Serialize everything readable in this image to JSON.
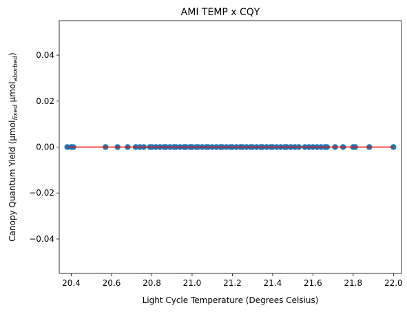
{
  "chart_data": {
    "type": "scatter",
    "title": "AMI TEMP x CQY",
    "xlabel": "Light Cycle Temperature (Degrees Celsius)",
    "ylabel": {
      "prefix": "Canopy Quantum Yield (μmol",
      "sub1": "fixed",
      "middle": " μmol",
      "sub2": "aborbed",
      "suffix": ")"
    },
    "xlim": [
      20.34,
      22.04
    ],
    "ylim": [
      -0.055,
      0.055
    ],
    "xticks": [
      20.4,
      20.6,
      20.8,
      21.0,
      21.2,
      21.4,
      21.6,
      21.8,
      22.0
    ],
    "xtick_labels": [
      "20.4",
      "20.6",
      "20.8",
      "21.0",
      "21.2",
      "21.4",
      "21.6",
      "21.8",
      "22.0"
    ],
    "yticks": [
      -0.04,
      -0.02,
      0.0,
      0.02,
      0.04
    ],
    "ytick_labels": [
      "−0.04",
      "−0.02",
      "0.00",
      "0.02",
      "0.04"
    ],
    "grid": false,
    "marker_color": "#1f77b4",
    "fit_line_color": "#ff0000",
    "fit_line": {
      "x": [
        20.38,
        22.0
      ],
      "y": [
        0.0,
        0.0
      ]
    },
    "x": [
      20.38,
      20.4,
      20.41,
      20.57,
      20.63,
      20.68,
      20.72,
      20.74,
      20.76,
      20.79,
      20.8,
      20.82,
      20.84,
      20.86,
      20.87,
      20.89,
      20.91,
      20.92,
      20.94,
      20.96,
      20.97,
      20.99,
      21.0,
      21.02,
      21.03,
      21.05,
      21.07,
      21.08,
      21.1,
      21.12,
      21.14,
      21.15,
      21.17,
      21.19,
      21.2,
      21.22,
      21.24,
      21.25,
      21.27,
      21.29,
      21.3,
      21.32,
      21.34,
      21.35,
      21.37,
      21.39,
      21.4,
      21.42,
      21.44,
      21.46,
      21.47,
      21.49,
      21.51,
      21.53,
      21.56,
      21.58,
      21.6,
      21.62,
      21.64,
      21.66,
      21.67,
      21.71,
      21.75,
      21.8,
      21.81,
      21.88,
      22.0
    ],
    "y": [
      0,
      0,
      0,
      0,
      0,
      0,
      0,
      0,
      0,
      0,
      0,
      0,
      0,
      0,
      0,
      0,
      0,
      0,
      0,
      0,
      0,
      0,
      0,
      0,
      0,
      0,
      0,
      0,
      0,
      0,
      0,
      0,
      0,
      0,
      0,
      0,
      0,
      0,
      0,
      0,
      0,
      0,
      0,
      0,
      0,
      0,
      0,
      0,
      0,
      0,
      0,
      0,
      0,
      0,
      0,
      0,
      0,
      0,
      0,
      0,
      0,
      0,
      0,
      0,
      0,
      0,
      0
    ]
  }
}
